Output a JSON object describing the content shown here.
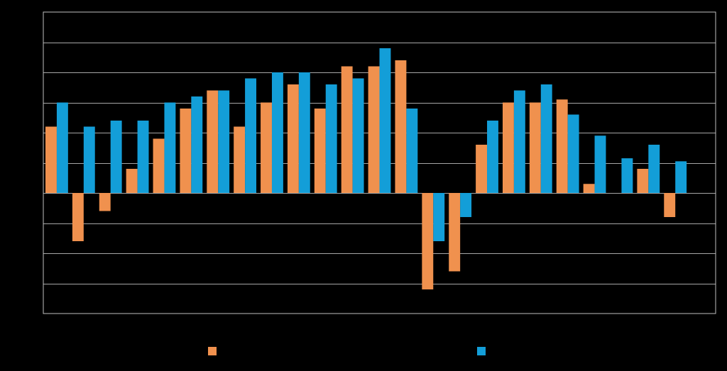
{
  "colors": {
    "background": "#000000",
    "series_1": "#F0914E",
    "series_2": "#139ED8",
    "gridline": "#A6A6A6",
    "frame": "#BFBFBF"
  },
  "chart_data": {
    "type": "bar",
    "title": "",
    "xlabel": "",
    "ylabel": "",
    "grid": true,
    "legend": "bottom",
    "ylim": [
      -4,
      6
    ],
    "categories": [
      "",
      "",
      "",
      "",
      "",
      "",
      "",
      "",
      "",
      "",
      "",
      "",
      "",
      "",
      "",
      "",
      "",
      "",
      "",
      "",
      "",
      "",
      "",
      "",
      ""
    ],
    "series": [
      {
        "name": "",
        "color": "#F0914E",
        "values": [
          2.2,
          -1.6,
          -0.6,
          0.8,
          1.8,
          2.8,
          3.4,
          2.2,
          3.0,
          3.6,
          2.8,
          4.2,
          4.2,
          4.4,
          -3.2,
          -2.6,
          1.6,
          3.0,
          3.0,
          3.1,
          0.3,
          0.0,
          0.8,
          -0.8,
          null
        ]
      },
      {
        "name": "",
        "color": "#139ED8",
        "values": [
          3.0,
          2.2,
          2.4,
          2.4,
          3.0,
          3.2,
          3.4,
          3.8,
          4.0,
          4.0,
          3.6,
          3.8,
          4.8,
          2.8,
          -1.6,
          -0.8,
          2.4,
          3.4,
          3.6,
          2.6,
          1.9,
          1.15,
          1.6,
          1.05,
          null
        ]
      }
    ]
  }
}
